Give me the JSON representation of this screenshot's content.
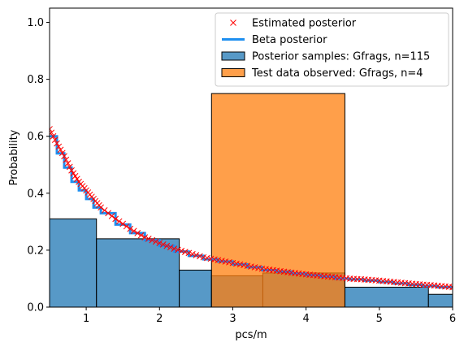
{
  "chart_data": {
    "type": "histogram_with_lines",
    "xlabel": "pcs/m",
    "ylabel": "Probability",
    "xlim": [
      0.5,
      6
    ],
    "ylim": [
      0,
      1.05
    ],
    "xticks": [
      1,
      2,
      3,
      4,
      5,
      6
    ],
    "yticks": [
      0.0,
      0.2,
      0.4,
      0.6,
      0.8,
      1.0
    ],
    "grid": false,
    "legend_position": "upper-right",
    "posterior_hist": {
      "name": "Posterior samples: Gfrags, n=115",
      "color": "#1f77b4",
      "alpha": 0.75,
      "bins": [
        {
          "x0": 0.5,
          "x1": 1.14,
          "value": 0.31
        },
        {
          "x0": 1.14,
          "x1": 2.27,
          "value": 0.24
        },
        {
          "x0": 2.27,
          "x1": 2.71,
          "value": 0.13
        },
        {
          "x0": 2.71,
          "x1": 3.41,
          "value": 0.11
        },
        {
          "x0": 3.41,
          "x1": 4.53,
          "value": 0.12
        },
        {
          "x0": 4.53,
          "x1": 5.67,
          "value": 0.07
        },
        {
          "x0": 5.67,
          "x1": 6.0,
          "value": 0.045
        }
      ]
    },
    "test_hist": {
      "name": "Test data observed: Gfrags, n=4",
      "color": "#ff7f0e",
      "alpha": 0.75,
      "bins": [
        {
          "x0": 2.71,
          "x1": 4.53,
          "value": 0.75
        }
      ]
    },
    "beta_line": {
      "name": "Beta posterior",
      "color": "#1e8ff0",
      "x": [
        0.5,
        0.6,
        0.7,
        0.8,
        0.9,
        1.0,
        1.1,
        1.2,
        1.4,
        1.6,
        1.8,
        2.0,
        2.2,
        2.4,
        2.6,
        2.8,
        3.0,
        3.2,
        3.4,
        3.6,
        3.8,
        4.0,
        4.2,
        4.4,
        4.6,
        4.8,
        5.0,
        5.2,
        5.4,
        5.6,
        5.8,
        6.0
      ],
      "y": [
        0.6,
        0.54,
        0.49,
        0.44,
        0.41,
        0.38,
        0.35,
        0.33,
        0.29,
        0.26,
        0.235,
        0.215,
        0.195,
        0.18,
        0.168,
        0.16,
        0.15,
        0.14,
        0.13,
        0.125,
        0.118,
        0.112,
        0.107,
        0.1,
        0.097,
        0.093,
        0.088,
        0.083,
        0.078,
        0.074,
        0.07,
        0.065
      ]
    },
    "estimated_points": {
      "name": "Estimated posterior",
      "color": "#ff0000",
      "marker": "x",
      "x": [
        0.5,
        0.6,
        0.7,
        0.8,
        0.9,
        1.0,
        1.1,
        1.2,
        1.4,
        1.6,
        1.8,
        2.0,
        2.2,
        2.4,
        2.6,
        2.8,
        3.0,
        3.2,
        3.4,
        3.6,
        3.8,
        4.0,
        4.2,
        4.4,
        4.6,
        4.8,
        5.0,
        5.2,
        5.4,
        5.6,
        5.8,
        6.0
      ],
      "y": [
        0.625,
        0.575,
        0.53,
        0.48,
        0.44,
        0.41,
        0.38,
        0.35,
        0.31,
        0.275,
        0.245,
        0.225,
        0.205,
        0.19,
        0.175,
        0.165,
        0.155,
        0.145,
        0.135,
        0.128,
        0.121,
        0.115,
        0.11,
        0.105,
        0.1,
        0.097,
        0.093,
        0.088,
        0.083,
        0.079,
        0.075,
        0.07
      ]
    },
    "legend": [
      {
        "key": "estimated",
        "label": "Estimated posterior"
      },
      {
        "key": "beta",
        "label": "Beta posterior"
      },
      {
        "key": "posterior",
        "label": "Posterior samples: Gfrags, n=115"
      },
      {
        "key": "test",
        "label": "Test data observed: Gfrags, n=4"
      }
    ]
  }
}
